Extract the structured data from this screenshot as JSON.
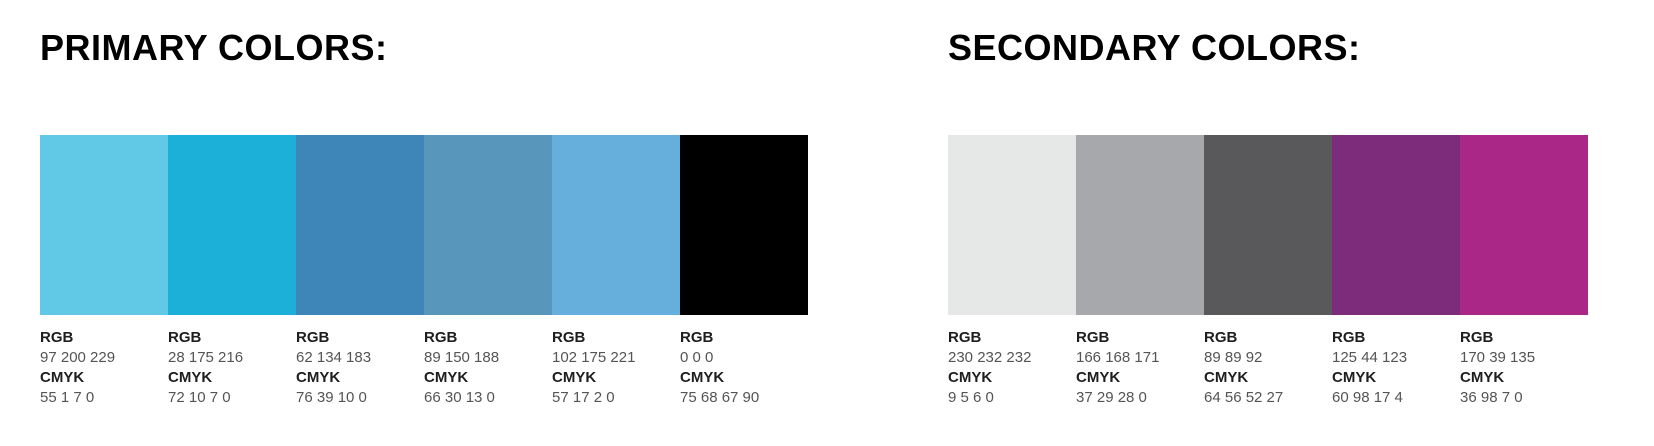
{
  "page": {
    "background": "#FFFFFF"
  },
  "text_colors": {
    "heading": "#000000",
    "label_bold": "#1E1E1E",
    "label_value": "#545456"
  },
  "sections": [
    {
      "title": "PRIMARY COLORS:",
      "swatches": [
        {
          "color_name": "sky-blue",
          "hex": "#61C8E5",
          "rgb_label": "RGB",
          "rgb_value": "97 200 229",
          "cmyk_label": "CMYK",
          "cmyk_value": "55 1 7 0"
        },
        {
          "color_name": "cyan-blue",
          "hex": "#1CAFD8",
          "rgb_label": "RGB",
          "rgb_value": "28 175 216",
          "cmyk_label": "CMYK",
          "cmyk_value": "72 10 7 0"
        },
        {
          "color_name": "steel-blue",
          "hex": "#3E86B7",
          "rgb_label": "RGB",
          "rgb_value": "62 134 183",
          "cmyk_label": "CMYK",
          "cmyk_value": "76 39 10 0"
        },
        {
          "color_name": "slate-blue",
          "hex": "#5996BC",
          "rgb_label": "RGB",
          "rgb_value": "89 150 188",
          "cmyk_label": "CMYK",
          "cmyk_value": "66 30 13 0"
        },
        {
          "color_name": "light-blue",
          "hex": "#66AFDD",
          "rgb_label": "RGB",
          "rgb_value": "102 175 221",
          "cmyk_label": "CMYK",
          "cmyk_value": "57 17 2 0"
        },
        {
          "color_name": "black",
          "hex": "#000000",
          "rgb_label": "RGB",
          "rgb_value": "0 0 0",
          "cmyk_label": "CMYK",
          "cmyk_value": "75 68 67 90"
        }
      ]
    },
    {
      "title": "SECONDARY COLORS:",
      "swatches": [
        {
          "color_name": "light-gray",
          "hex": "#E6E8E8",
          "rgb_label": "RGB",
          "rgb_value": "230 232 232",
          "cmyk_label": "CMYK",
          "cmyk_value": "9 5 6 0"
        },
        {
          "color_name": "gray",
          "hex": "#A6A8AB",
          "rgb_label": "RGB",
          "rgb_value": "166 168 171",
          "cmyk_label": "CMYK",
          "cmyk_value": "37 29 28 0"
        },
        {
          "color_name": "dark-gray",
          "hex": "#59595C",
          "rgb_label": "RGB",
          "rgb_value": "89 89 92",
          "cmyk_label": "CMYK",
          "cmyk_value": "64 56 52 27"
        },
        {
          "color_name": "purple",
          "hex": "#7D2C7B",
          "rgb_label": "RGB",
          "rgb_value": "125 44 123",
          "cmyk_label": "CMYK",
          "cmyk_value": "60 98 17 4"
        },
        {
          "color_name": "magenta",
          "hex": "#AA2787",
          "rgb_label": "RGB",
          "rgb_value": "170 39 135",
          "cmyk_label": "CMYK",
          "cmyk_value": "36 98 7 0"
        }
      ]
    }
  ]
}
